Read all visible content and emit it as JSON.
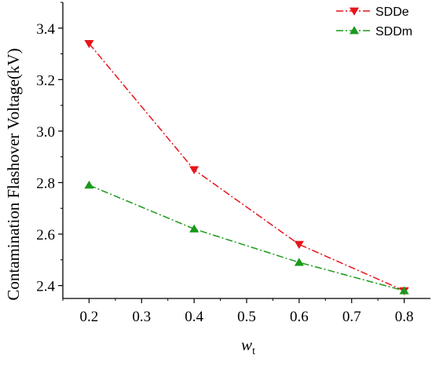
{
  "chart_data": {
    "type": "line",
    "title": "",
    "ylabel": "Contamination Flashover Voltage(kV)",
    "xlabel_main": "w",
    "xlabel_sub": "t",
    "xlim": [
      0.15,
      0.85
    ],
    "ylim": [
      2.35,
      3.5
    ],
    "xticks": [
      0.2,
      0.3,
      0.4,
      0.5,
      0.6,
      0.7,
      0.8
    ],
    "xtick_labels": [
      "0.2",
      "0.3",
      "0.4",
      "0.5",
      "0.6",
      "0.7",
      "0.8"
    ],
    "yticks": [
      2.4,
      2.6,
      2.8,
      3.0,
      3.2,
      3.4
    ],
    "ytick_labels": [
      "2.4",
      "2.6",
      "2.8",
      "3.0",
      "3.2",
      "3.4"
    ],
    "legend_position": "top-right",
    "grid": false,
    "series": [
      {
        "name": "SDDe",
        "color": "#e8141b",
        "marker": "triangle-down",
        "x": [
          0.2,
          0.4,
          0.6,
          0.8
        ],
        "y": [
          3.34,
          2.85,
          2.56,
          2.38
        ]
      },
      {
        "name": "SDDm",
        "color": "#1a9a1a",
        "marker": "triangle-up",
        "x": [
          0.2,
          0.4,
          0.6,
          0.8
        ],
        "y": [
          2.79,
          2.62,
          2.49,
          2.38
        ]
      }
    ]
  }
}
